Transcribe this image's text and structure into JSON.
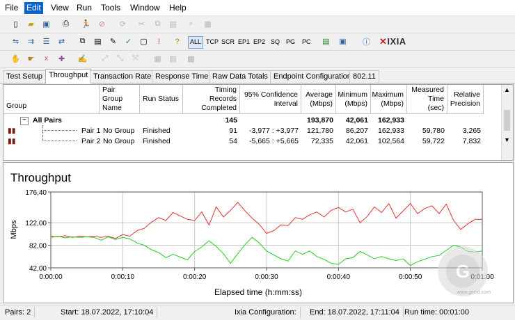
{
  "menu": [
    "File",
    "Edit",
    "View",
    "Run",
    "Tools",
    "Window",
    "Help"
  ],
  "menu_active": "Edit",
  "toolbar2_labels": [
    "ALL",
    "TCP",
    "SCR",
    "EP1",
    "EP2",
    "SQ",
    "PG",
    "PC"
  ],
  "logo": "IXIA",
  "tabs": [
    "Test Setup",
    "Throughput",
    "Transaction Rate",
    "Response Time",
    "Raw Data Totals",
    "Endpoint Configuration",
    "802.11"
  ],
  "active_tab": "Throughput",
  "table": {
    "headers": {
      "group": "Group",
      "pair_group_name": "Pair Group Name",
      "run_status": "Run Status",
      "timing_records": "Timing Records Completed",
      "confidence": "95% Confidence Interval",
      "average": "Average (Mbps)",
      "minimum": "Minimum (Mbps)",
      "maximum": "Maximum (Mbps)",
      "measured_time": "Measured Time (sec)",
      "relative_precision": "Relative Precision"
    },
    "all_pairs": {
      "label": "All Pairs",
      "timing_records": "145",
      "average": "193,870",
      "minimum": "42,061",
      "maximum": "162,933"
    },
    "rows": [
      {
        "pair": "Pair 1",
        "group": "No Group",
        "status": "Finished",
        "records": "91",
        "confidence": "-3,977 : +3,977",
        "average": "121,780",
        "minimum": "86,207",
        "maximum": "162,933",
        "measured": "59,780",
        "precision": "3,265"
      },
      {
        "pair": "Pair 2",
        "group": "No Group",
        "status": "Finished",
        "records": "54",
        "confidence": "-5,665 : +5,665",
        "average": "72,335",
        "minimum": "42,061",
        "maximum": "102,564",
        "measured": "59,722",
        "precision": "7,832"
      }
    ]
  },
  "chart_data": {
    "type": "line",
    "title": "Throughput",
    "xlabel": "Elapsed time (h:mm:ss)",
    "ylabel": "Mbps",
    "ylim": [
      42.0,
      176.4
    ],
    "yticks": [
      "176,40",
      "122,00",
      "82,00",
      "42,00"
    ],
    "ytick_values": [
      176.4,
      122.0,
      82.0,
      42.0
    ],
    "xlim": [
      0,
      60
    ],
    "xticks": [
      "0:00:00",
      "0:00:10",
      "0:00:20",
      "0:00:30",
      "0:00:40",
      "0:00:50",
      "0:01:00"
    ],
    "xtick_values": [
      0,
      10,
      20,
      30,
      40,
      50,
      60
    ],
    "grid": true,
    "series": [
      {
        "color": "#e03030",
        "x": [
          0,
          1,
          2,
          3,
          4,
          5,
          6,
          7,
          8,
          9,
          10,
          11,
          12,
          13,
          14,
          15,
          16,
          17,
          18,
          19,
          20,
          21,
          22,
          23,
          24,
          25,
          26,
          27,
          28,
          29,
          30,
          31,
          32,
          33,
          34,
          35,
          36,
          37,
          38,
          39,
          40,
          41,
          42,
          43,
          44,
          45,
          46,
          47,
          48,
          49,
          50,
          51,
          52,
          53,
          54,
          55,
          56,
          57,
          58,
          59,
          60
        ],
        "values": [
          98,
          97,
          99,
          96,
          98,
          97,
          98,
          96,
          98,
          94,
          101,
          98,
          108,
          112,
          123,
          131,
          126,
          140,
          134,
          128,
          126,
          141,
          118,
          150,
          132,
          144,
          158,
          143,
          130,
          119,
          103,
          108,
          118,
          117,
          131,
          128,
          136,
          141,
          132,
          144,
          149,
          141,
          146,
          122,
          133,
          150,
          140,
          156,
          130,
          143,
          156,
          138,
          147,
          152,
          138,
          155,
          126,
          110,
          120,
          128,
          128
        ]
      },
      {
        "color": "#22cc22",
        "x": [
          0,
          1,
          2,
          3,
          4,
          5,
          6,
          7,
          8,
          9,
          10,
          11,
          12,
          13,
          14,
          15,
          16,
          17,
          18,
          19,
          20,
          21,
          22,
          23,
          24,
          25,
          26,
          27,
          28,
          29,
          30,
          31,
          32,
          33,
          34,
          35,
          36,
          37,
          38,
          39,
          40,
          41,
          42,
          43,
          44,
          45,
          46,
          47,
          48,
          49,
          50,
          51,
          52,
          53,
          54,
          55,
          56,
          57,
          58,
          59,
          60
        ],
        "values": [
          96,
          98,
          95,
          97,
          96,
          97,
          96,
          91,
          97,
          92,
          96,
          93,
          86,
          82,
          74,
          69,
          60,
          66,
          61,
          56,
          71,
          79,
          90,
          80,
          67,
          50,
          67,
          83,
          96,
          86,
          72,
          65,
          58,
          54,
          72,
          66,
          72,
          62,
          57,
          50,
          48,
          58,
          60,
          71,
          65,
          58,
          62,
          58,
          55,
          58,
          46,
          53,
          57,
          62,
          64,
          73,
          82,
          79,
          71,
          70,
          72
        ]
      }
    ]
  },
  "status": {
    "pairs": "Pairs: 2",
    "start": "Start: 18.07.2022, 17:10:04",
    "config": "Ixia Configuration:",
    "end": "End: 18.07.2022, 17:11:04",
    "runtime": "Run time: 00:01:00"
  },
  "watermark": "www.gecid.com"
}
